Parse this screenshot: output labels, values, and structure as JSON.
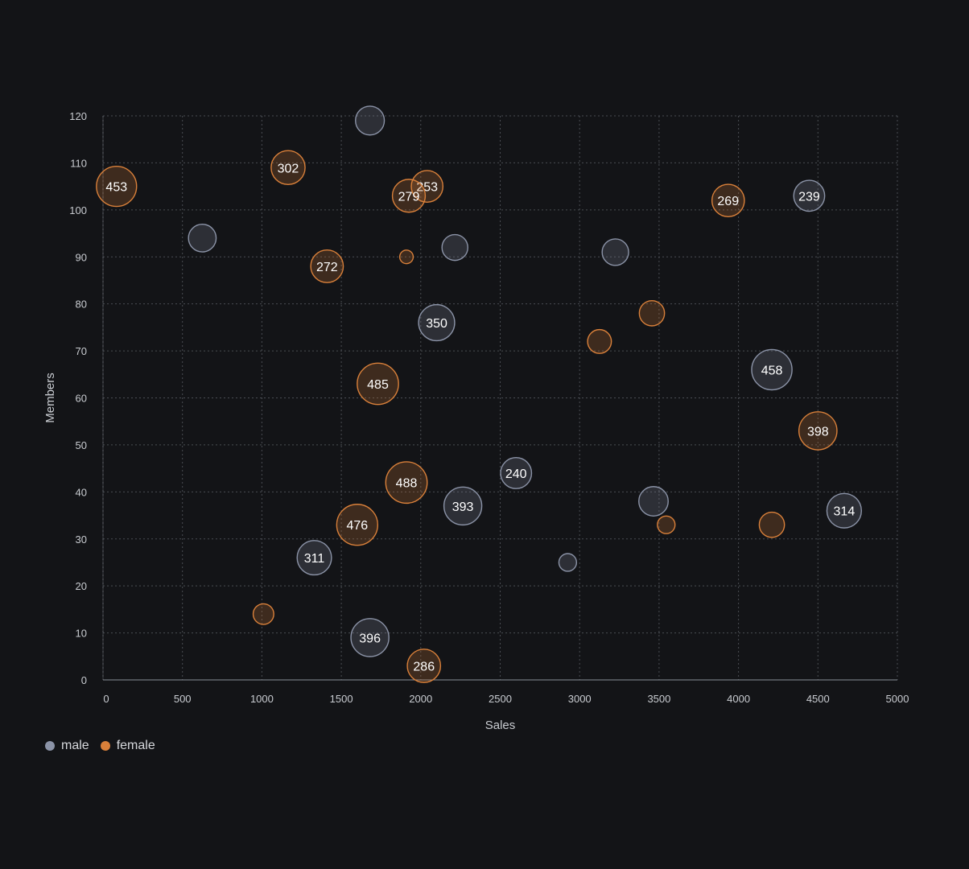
{
  "chart_data": {
    "type": "scatter",
    "subtype": "bubble",
    "xlabel": "Sales",
    "ylabel": "Members",
    "xlim": [
      0,
      5000
    ],
    "ylim": [
      0,
      120
    ],
    "x_ticks": [
      0,
      500,
      1000,
      1500,
      2000,
      2500,
      3000,
      3500,
      4000,
      4500,
      5000
    ],
    "y_ticks": [
      0,
      10,
      20,
      30,
      40,
      50,
      60,
      70,
      80,
      90,
      100,
      110,
      120
    ],
    "grid": true,
    "legend_position": "bottom-left",
    "series": [
      {
        "name": "male",
        "color": "#8b93a7",
        "points": [
          {
            "x": 1680,
            "y": 119,
            "size": 200,
            "label": ""
          },
          {
            "x": 625,
            "y": 94,
            "size": 180,
            "label": ""
          },
          {
            "x": 2215,
            "y": 92,
            "size": 150,
            "label": ""
          },
          {
            "x": 3225,
            "y": 91,
            "size": 160,
            "label": ""
          },
          {
            "x": 4445,
            "y": 103,
            "size": 239,
            "label": "239"
          },
          {
            "x": 2100,
            "y": 76,
            "size": 350,
            "label": "350"
          },
          {
            "x": 4210,
            "y": 66,
            "size": 458,
            "label": "458"
          },
          {
            "x": 2600,
            "y": 44,
            "size": 240,
            "label": "240"
          },
          {
            "x": 2265,
            "y": 37,
            "size": 393,
            "label": "393"
          },
          {
            "x": 3465,
            "y": 38,
            "size": 210,
            "label": ""
          },
          {
            "x": 4665,
            "y": 36,
            "size": 314,
            "label": "314"
          },
          {
            "x": 1330,
            "y": 26,
            "size": 311,
            "label": "311"
          },
          {
            "x": 2925,
            "y": 25,
            "size": 50,
            "label": ""
          },
          {
            "x": 1680,
            "y": 9,
            "size": 396,
            "label": "396"
          }
        ]
      },
      {
        "name": "female",
        "color": "#d9803a",
        "points": [
          {
            "x": 85,
            "y": 105,
            "size": 453,
            "label": "453"
          },
          {
            "x": 1165,
            "y": 109,
            "size": 302,
            "label": "302"
          },
          {
            "x": 2040,
            "y": 105,
            "size": 253,
            "label": "253"
          },
          {
            "x": 1925,
            "y": 103,
            "size": 279,
            "label": "279"
          },
          {
            "x": 3935,
            "y": 102,
            "size": 269,
            "label": "269"
          },
          {
            "x": 1410,
            "y": 88,
            "size": 272,
            "label": "272"
          },
          {
            "x": 1910,
            "y": 90,
            "size": 20,
            "label": ""
          },
          {
            "x": 3455,
            "y": 78,
            "size": 140,
            "label": ""
          },
          {
            "x": 3125,
            "y": 72,
            "size": 120,
            "label": ""
          },
          {
            "x": 1730,
            "y": 63,
            "size": 485,
            "label": "485"
          },
          {
            "x": 4500,
            "y": 53,
            "size": 398,
            "label": "398"
          },
          {
            "x": 1910,
            "y": 42,
            "size": 488,
            "label": "488"
          },
          {
            "x": 1600,
            "y": 33,
            "size": 476,
            "label": "476"
          },
          {
            "x": 3545,
            "y": 33,
            "size": 50,
            "label": ""
          },
          {
            "x": 4210,
            "y": 33,
            "size": 140,
            "label": ""
          },
          {
            "x": 1010,
            "y": 14,
            "size": 80,
            "label": ""
          },
          {
            "x": 2020,
            "y": 3,
            "size": 286,
            "label": "286"
          }
        ]
      }
    ]
  }
}
